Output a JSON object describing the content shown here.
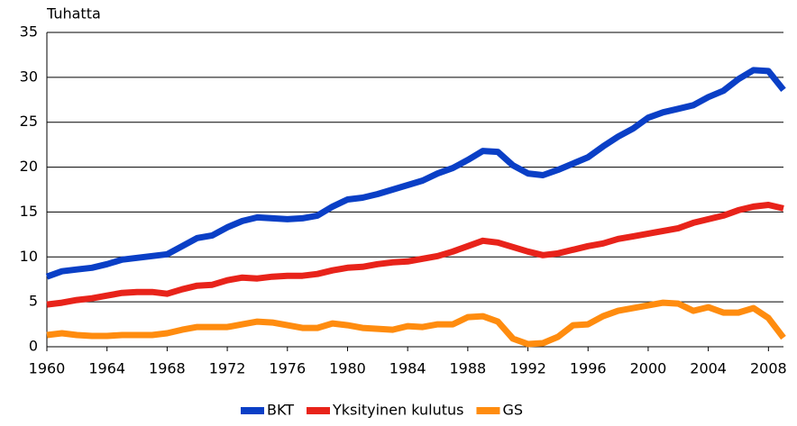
{
  "chart_data": {
    "type": "line",
    "y_label": "Tuhatta",
    "x": [
      1960,
      1961,
      1962,
      1963,
      1964,
      1965,
      1966,
      1967,
      1968,
      1969,
      1970,
      1971,
      1972,
      1973,
      1974,
      1975,
      1976,
      1977,
      1978,
      1979,
      1980,
      1981,
      1982,
      1983,
      1984,
      1985,
      1986,
      1987,
      1988,
      1989,
      1990,
      1991,
      1992,
      1993,
      1994,
      1995,
      1996,
      1997,
      1998,
      1999,
      2000,
      2001,
      2002,
      2003,
      2004,
      2005,
      2006,
      2007,
      2008,
      2009
    ],
    "series": [
      {
        "name": "BKT",
        "color": "#0a3fc6",
        "values": [
          7.8,
          8.4,
          8.6,
          8.8,
          9.2,
          9.7,
          9.9,
          10.1,
          10.3,
          11.2,
          12.1,
          12.4,
          13.3,
          14.0,
          14.4,
          14.3,
          14.2,
          14.3,
          14.6,
          15.6,
          16.4,
          16.6,
          17.0,
          17.5,
          18.0,
          18.5,
          19.3,
          19.9,
          20.8,
          21.8,
          21.7,
          20.2,
          19.3,
          19.1,
          19.7,
          20.4,
          21.1,
          22.3,
          23.4,
          24.3,
          25.5,
          26.1,
          26.5,
          26.9,
          27.8,
          28.5,
          29.8,
          30.8,
          30.7,
          28.6
        ]
      },
      {
        "name": "Yksityinen kulutus",
        "color": "#e8231a",
        "values": [
          4.7,
          4.9,
          5.2,
          5.4,
          5.7,
          6.0,
          6.1,
          6.1,
          5.9,
          6.4,
          6.8,
          6.9,
          7.4,
          7.7,
          7.6,
          7.8,
          7.9,
          7.9,
          8.1,
          8.5,
          8.8,
          8.9,
          9.2,
          9.4,
          9.5,
          9.8,
          10.1,
          10.6,
          11.2,
          11.8,
          11.6,
          11.1,
          10.6,
          10.2,
          10.4,
          10.8,
          11.2,
          11.5,
          12.0,
          12.3,
          12.6,
          12.9,
          13.2,
          13.8,
          14.2,
          14.6,
          15.2,
          15.6,
          15.8,
          15.4
        ]
      },
      {
        "name": "GS",
        "color": "#ff8c0f",
        "values": [
          1.3,
          1.5,
          1.3,
          1.2,
          1.2,
          1.3,
          1.3,
          1.3,
          1.5,
          1.9,
          2.2,
          2.2,
          2.2,
          2.5,
          2.8,
          2.7,
          2.4,
          2.1,
          2.1,
          2.6,
          2.4,
          2.1,
          2.0,
          1.9,
          2.3,
          2.2,
          2.5,
          2.5,
          3.3,
          3.4,
          2.8,
          0.9,
          0.3,
          0.4,
          1.1,
          2.4,
          2.5,
          3.4,
          4.0,
          4.3,
          4.6,
          4.9,
          4.8,
          4.0,
          4.4,
          3.8,
          3.8,
          4.3,
          3.2,
          1.0
        ]
      }
    ],
    "xlim": [
      1960,
      2009
    ],
    "xticks": [
      1960,
      1964,
      1968,
      1972,
      1976,
      1980,
      1984,
      1988,
      1992,
      1996,
      2000,
      2004,
      2008
    ],
    "ylim": [
      0,
      35
    ],
    "yticks": [
      0,
      5,
      10,
      15,
      20,
      25,
      30,
      35
    ],
    "grid": true,
    "legend": "bottom"
  }
}
